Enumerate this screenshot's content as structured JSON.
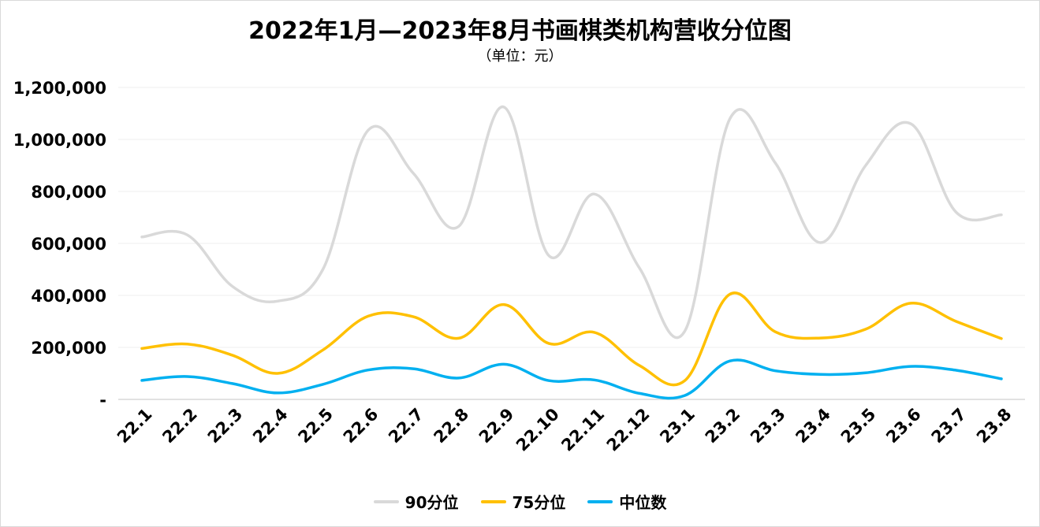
{
  "chart_data": {
    "type": "line",
    "title": "2022年1月—2023年8月书画棋类机构营收分位图",
    "subtitle": "（单位：元）",
    "xlabel": "",
    "ylabel": "",
    "ylim": [
      0,
      1200000
    ],
    "yticks": [
      0,
      200000,
      400000,
      600000,
      800000,
      1000000,
      1200000
    ],
    "ytick_labels": [
      "-",
      "200,000",
      "400,000",
      "600,000",
      "800,000",
      "1,000,000",
      "1,200,000"
    ],
    "grid": true,
    "legend_position": "bottom-center",
    "categories": [
      "22.1",
      "22.2",
      "22.3",
      "22.4",
      "22.5",
      "22.6",
      "22.7",
      "22.8",
      "22.9",
      "22.10",
      "22.11",
      "22.12",
      "23.1",
      "23.2",
      "23.3",
      "23.4",
      "23.5",
      "23.6",
      "23.7",
      "23.8"
    ],
    "series": [
      {
        "name": "90分位",
        "color": "#d9d9d9",
        "values": [
          625000,
          633000,
          435000,
          378000,
          500000,
          1035000,
          870000,
          665000,
          1125000,
          552000,
          790000,
          505000,
          262000,
          1080000,
          910000,
          603000,
          900000,
          1060000,
          720000,
          710000
        ]
      },
      {
        "name": "75分位",
        "color": "#ffc000",
        "values": [
          196000,
          213000,
          170000,
          100000,
          190000,
          320000,
          318000,
          235000,
          365000,
          215000,
          258000,
          130000,
          72000,
          405000,
          260000,
          236000,
          270000,
          370000,
          300000,
          234000
        ]
      },
      {
        "name": "中位数",
        "color": "#00b0f0",
        "values": [
          73000,
          88000,
          61000,
          25000,
          58000,
          113000,
          118000,
          82000,
          135000,
          72000,
          75000,
          23000,
          15000,
          148000,
          110000,
          96000,
          102000,
          127000,
          112000,
          79000
        ]
      }
    ]
  }
}
